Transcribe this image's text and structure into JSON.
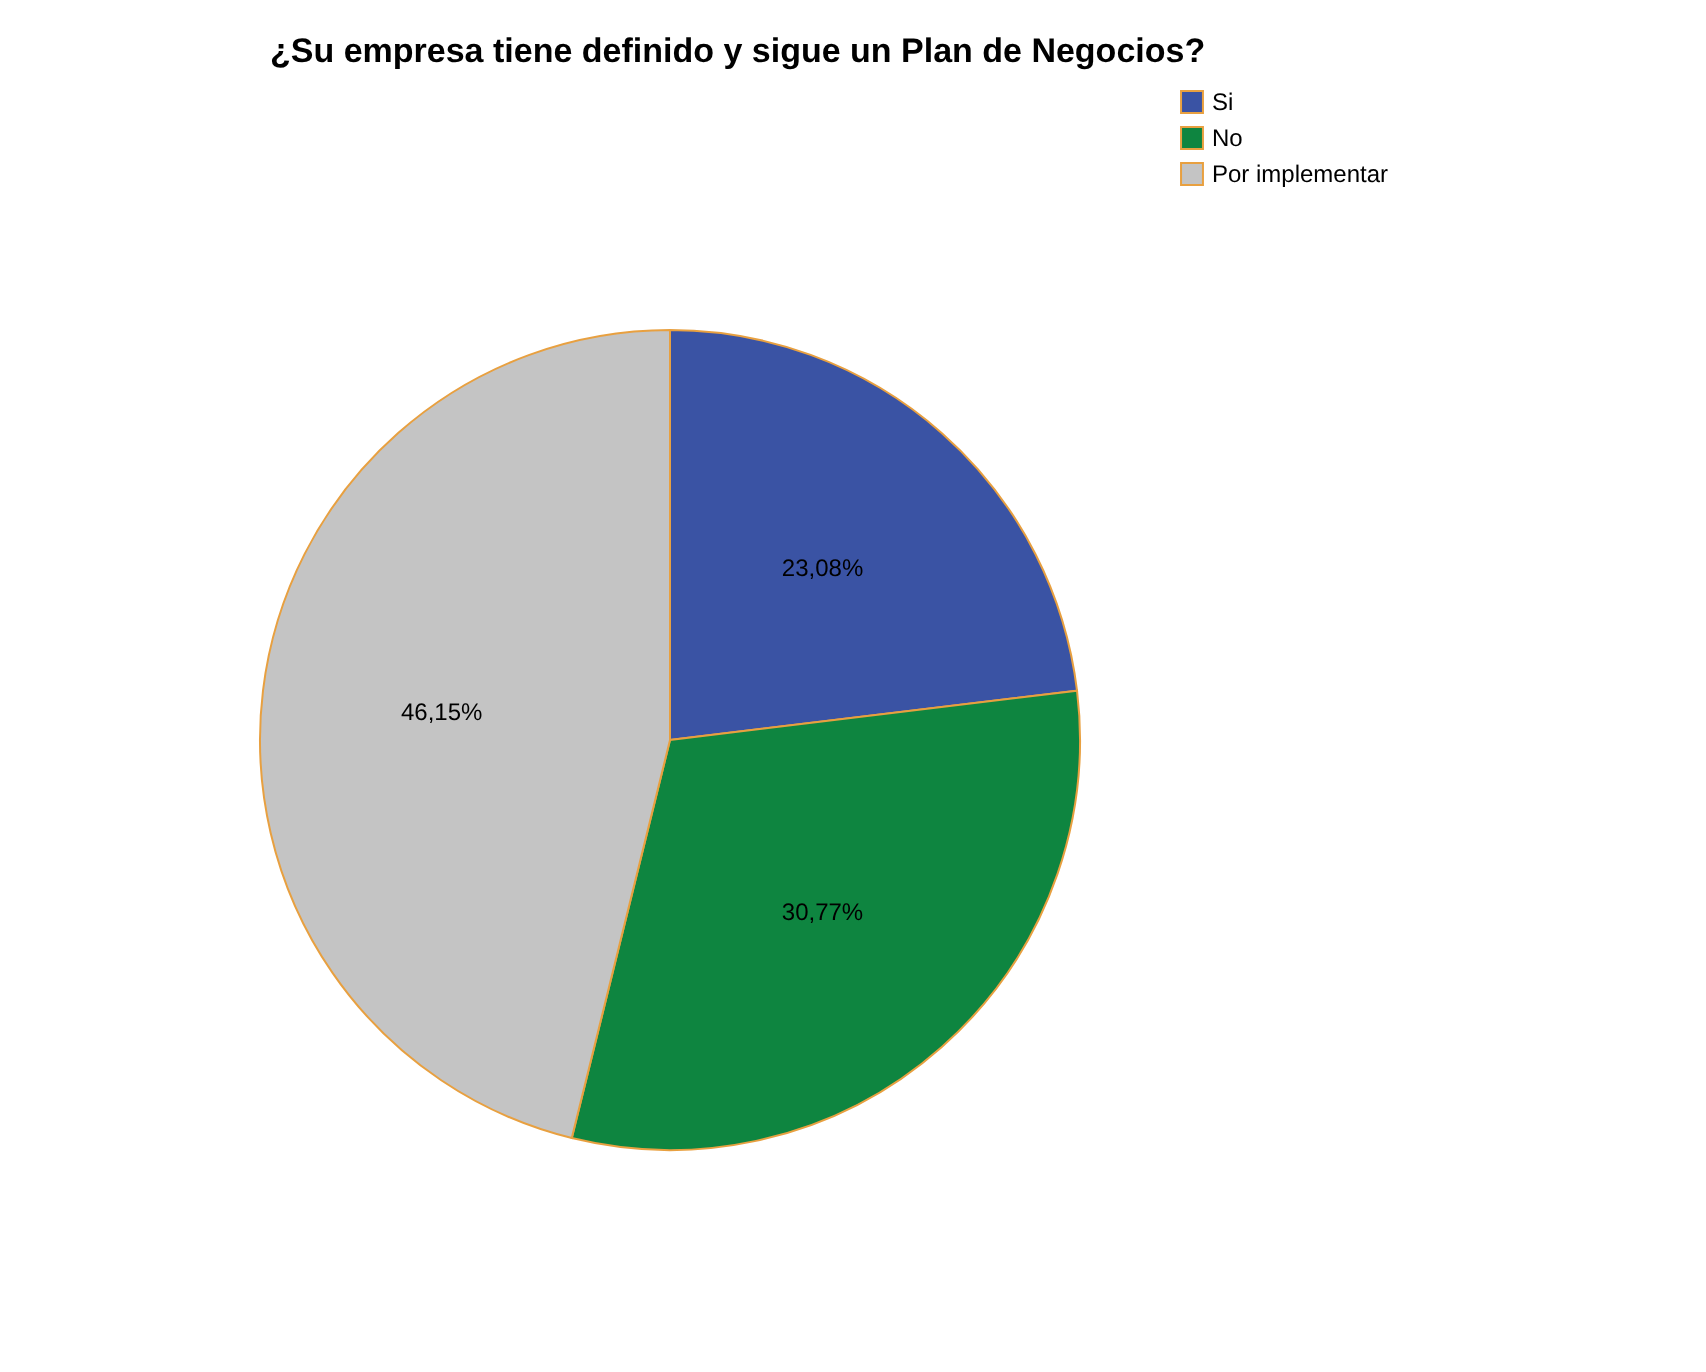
{
  "chart_data": {
    "type": "pie",
    "title": "¿Su empresa tiene definido y sigue un Plan de Negocios?",
    "categories": [
      "Si",
      "No",
      "Por implementar"
    ],
    "values": [
      23.08,
      30.77,
      46.15
    ],
    "colors": [
      "#3a53a4",
      "#0e8540",
      "#c4c4c4"
    ],
    "value_labels": [
      "23,08%",
      "30,77%",
      "46,15%"
    ],
    "legend": "top right"
  }
}
